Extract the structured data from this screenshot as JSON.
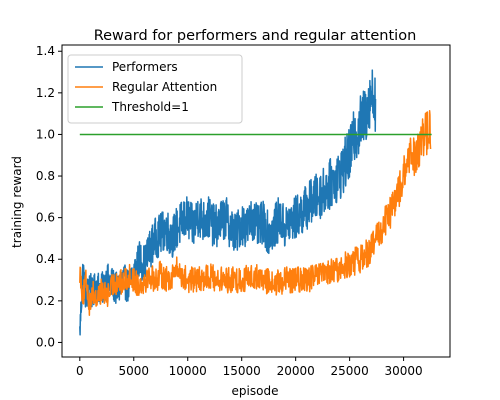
{
  "chart_data": {
    "type": "line",
    "title": "Reward for performers and regular attention",
    "xlabel": "episode",
    "ylabel": "training reward",
    "xlim": [
      -1650,
      34300
    ],
    "ylim": [
      -0.07,
      1.43
    ],
    "xticks": [
      0,
      5000,
      10000,
      15000,
      20000,
      25000,
      30000
    ],
    "yticks": [
      0.0,
      0.2,
      0.4,
      0.6,
      0.8,
      1.0,
      1.2,
      1.4
    ],
    "grid": false,
    "legend_position": "top-left",
    "series": [
      {
        "name": "Performers",
        "color": "#1f77b4",
        "x": [
          0,
          300,
          600,
          900,
          1200,
          1500,
          2000,
          2500,
          3000,
          3500,
          4000,
          4500,
          5000,
          5500,
          6000,
          6500,
          7000,
          7500,
          8000,
          8500,
          9000,
          9500,
          10000,
          10500,
          11000,
          11500,
          12000,
          12500,
          13000,
          13500,
          14000,
          14500,
          15000,
          15500,
          16000,
          16500,
          17000,
          17500,
          18000,
          18500,
          19000,
          19500,
          20000,
          20500,
          21000,
          21500,
          22000,
          22500,
          23000,
          23500,
          24000,
          24500,
          25000,
          25500,
          26000,
          26500,
          27000,
          27400
        ],
        "y": [
          0.05,
          0.35,
          0.2,
          0.3,
          0.22,
          0.28,
          0.25,
          0.3,
          0.28,
          0.25,
          0.3,
          0.27,
          0.33,
          0.4,
          0.38,
          0.45,
          0.5,
          0.52,
          0.55,
          0.5,
          0.55,
          0.58,
          0.6,
          0.55,
          0.62,
          0.58,
          0.6,
          0.55,
          0.58,
          0.6,
          0.55,
          0.52,
          0.58,
          0.55,
          0.6,
          0.55,
          0.58,
          0.52,
          0.55,
          0.6,
          0.55,
          0.58,
          0.6,
          0.62,
          0.65,
          0.68,
          0.7,
          0.72,
          0.75,
          0.78,
          0.8,
          0.85,
          0.9,
          1.0,
          1.05,
          1.1,
          1.2,
          1.15
        ]
      },
      {
        "name": "Regular Attention",
        "color": "#ff7f0e",
        "x": [
          0,
          300,
          600,
          900,
          1200,
          1500,
          2000,
          2500,
          3000,
          3500,
          4000,
          4500,
          5000,
          5500,
          6000,
          6500,
          7000,
          7500,
          8000,
          8500,
          9000,
          9500,
          10000,
          11000,
          12000,
          13000,
          14000,
          15000,
          16000,
          17000,
          18000,
          19000,
          20000,
          21000,
          22000,
          23000,
          24000,
          25000,
          26000,
          27000,
          27500,
          28000,
          28500,
          29000,
          29500,
          30000,
          30500,
          31000,
          31500,
          32000,
          32500
        ],
        "y": [
          0.35,
          0.22,
          0.3,
          0.18,
          0.25,
          0.2,
          0.25,
          0.22,
          0.27,
          0.3,
          0.28,
          0.32,
          0.3,
          0.28,
          0.3,
          0.32,
          0.3,
          0.33,
          0.3,
          0.32,
          0.35,
          0.32,
          0.3,
          0.3,
          0.32,
          0.3,
          0.3,
          0.3,
          0.32,
          0.3,
          0.28,
          0.3,
          0.3,
          0.3,
          0.32,
          0.33,
          0.35,
          0.38,
          0.4,
          0.45,
          0.5,
          0.55,
          0.6,
          0.65,
          0.72,
          0.8,
          0.88,
          0.9,
          0.95,
          1.0,
          1.02
        ]
      },
      {
        "name": "Threshold=1",
        "color": "#2ca02c",
        "x": [
          0,
          32600
        ],
        "y": [
          1.0,
          1.0
        ]
      }
    ]
  }
}
